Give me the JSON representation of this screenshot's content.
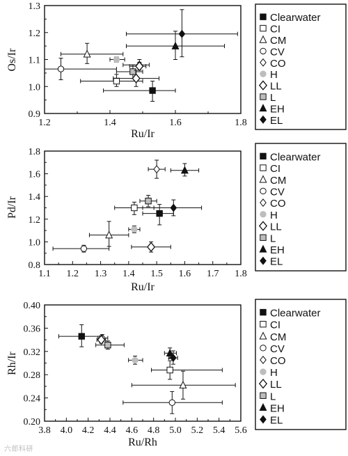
{
  "watermark": "六郎科研",
  "legend_labels": [
    "Clearwater",
    "CI",
    "CM",
    "CV",
    "CO",
    "H",
    "LL",
    "L",
    "EH",
    "EL"
  ],
  "legend_markers": [
    "filled-square",
    "open-square",
    "open-triangle",
    "open-circle",
    "open-diamond",
    "gray-circle",
    "open-diamond-large",
    "gray-square",
    "filled-triangle",
    "filled-diamond"
  ],
  "colors": {
    "ink": "#111111",
    "gray_fill": "#bdbdbd",
    "background": "#ffffff"
  },
  "chart_data": [
    {
      "type": "scatter",
      "xlabel": "Ru/Ir",
      "ylabel": "Os/Ir",
      "xlim": [
        1.2,
        1.8
      ],
      "ylim": [
        0.9,
        1.3
      ],
      "xticks": [
        "1.2",
        "1.4",
        "1.6",
        "1.8"
      ],
      "yticks": [
        "0.9",
        "1.0",
        "1.1",
        "1.2",
        "1.3"
      ],
      "grid": false,
      "legend_position": "right",
      "points": [
        {
          "name": "Clearwater",
          "x": 1.53,
          "y": 0.985,
          "xerr": [
            1.38,
            1.6
          ],
          "yerr": [
            0.945,
            1.02
          ]
        },
        {
          "name": "CI",
          "x": 1.42,
          "y": 1.02,
          "xerr": [
            1.31,
            1.5
          ],
          "yerr": [
            1.0,
            1.045
          ]
        },
        {
          "name": "CM",
          "x": 1.33,
          "y": 1.12,
          "xerr": [
            1.25,
            1.44
          ],
          "yerr": [
            1.085,
            1.16
          ]
        },
        {
          "name": "CV",
          "x": 1.25,
          "y": 1.065,
          "xerr": [
            1.2,
            1.42
          ],
          "yerr": [
            1.025,
            1.105
          ]
        },
        {
          "name": "CO",
          "x": 1.49,
          "y": 1.08,
          "xerr": [
            1.44,
            1.52
          ],
          "yerr": [
            1.06,
            1.1
          ]
        },
        {
          "name": "H",
          "x": 1.42,
          "y": 1.1,
          "xerr": [
            1.4,
            1.445
          ],
          "yerr": [
            1.09,
            1.11
          ]
        },
        {
          "name": "LL",
          "x": 1.49,
          "y": 1.075,
          "xerr": [
            1.46,
            1.51
          ],
          "yerr": [
            1.06,
            1.09
          ]
        },
        {
          "name": "L",
          "x": 1.47,
          "y": 1.055,
          "xerr": [
            1.42,
            1.5
          ],
          "yerr": [
            1.03,
            1.08
          ]
        },
        {
          "name": "EH",
          "x": 1.6,
          "y": 1.15,
          "xerr": [
            1.45,
            1.75
          ],
          "yerr": [
            1.1,
            1.205
          ]
        },
        {
          "name": "EL",
          "x": 1.62,
          "y": 1.195,
          "xerr": [
            1.45,
            1.79
          ],
          "yerr": [
            1.11,
            1.285
          ]
        },
        {
          "name": "LL",
          "x": 1.48,
          "y": 1.03,
          "xerr": [
            1.41,
            1.55
          ],
          "yerr": [
            1.0,
            1.06
          ]
        }
      ]
    },
    {
      "type": "scatter",
      "xlabel": "Ru/Ir",
      "ylabel": "Pd/Ir",
      "xlim": [
        1.1,
        1.8
      ],
      "ylim": [
        0.8,
        1.8
      ],
      "xticks": [
        "1.1",
        "1.2",
        "1.3",
        "1.4",
        "1.5",
        "1.6",
        "1.7",
        "1.8"
      ],
      "yticks": [
        "0.8",
        "1.0",
        "1.2",
        "1.4",
        "1.6",
        "1.8"
      ],
      "grid": false,
      "legend_position": "right",
      "points": [
        {
          "name": "Clearwater",
          "x": 1.51,
          "y": 1.25,
          "xerr": [
            1.45,
            1.56
          ],
          "yerr": [
            1.15,
            1.33
          ]
        },
        {
          "name": "CI",
          "x": 1.42,
          "y": 1.3,
          "xerr": [
            1.35,
            1.49
          ],
          "yerr": [
            1.24,
            1.35
          ]
        },
        {
          "name": "CM",
          "x": 1.33,
          "y": 1.06,
          "xerr": [
            1.26,
            1.4
          ],
          "yerr": [
            0.96,
            1.18
          ]
        },
        {
          "name": "CV",
          "x": 1.24,
          "y": 0.94,
          "xerr": [
            1.13,
            1.33
          ],
          "yerr": [
            0.91,
            0.97
          ]
        },
        {
          "name": "CO",
          "x": 1.5,
          "y": 1.64,
          "xerr": [
            1.47,
            1.53
          ],
          "yerr": [
            1.56,
            1.72
          ]
        },
        {
          "name": "H",
          "x": 1.42,
          "y": 1.11,
          "xerr": [
            1.4,
            1.44
          ],
          "yerr": [
            1.08,
            1.14
          ]
        },
        {
          "name": "LL",
          "x": 1.48,
          "y": 0.955,
          "xerr": [
            1.41,
            1.55
          ],
          "yerr": [
            0.91,
            1.0
          ]
        },
        {
          "name": "L",
          "x": 1.47,
          "y": 1.36,
          "xerr": [
            1.44,
            1.5
          ],
          "yerr": [
            1.31,
            1.41
          ]
        },
        {
          "name": "EH",
          "x": 1.6,
          "y": 1.63,
          "xerr": [
            1.55,
            1.65
          ],
          "yerr": [
            1.58,
            1.69
          ]
        },
        {
          "name": "EL",
          "x": 1.56,
          "y": 1.3,
          "xerr": [
            1.45,
            1.66
          ],
          "yerr": [
            1.23,
            1.37
          ]
        }
      ]
    },
    {
      "type": "scatter",
      "xlabel": "Ru/Rh",
      "ylabel": "Rh/Ir",
      "xlim": [
        3.8,
        5.6
      ],
      "ylim": [
        0.2,
        0.4
      ],
      "xticks": [
        "3.8",
        "4.0",
        "4.2",
        "4.4",
        "4.6",
        "4.8",
        "5.0",
        "5.2",
        "5.4",
        "5.6"
      ],
      "yticks": [
        "0.20",
        "0.24",
        "0.28",
        "0.32",
        "0.36",
        "0.40"
      ],
      "grid": false,
      "legend_position": "right",
      "points": [
        {
          "name": "Clearwater",
          "x": 4.14,
          "y": 0.346,
          "xerr": [
            3.93,
            4.32
          ],
          "yerr": [
            0.328,
            0.366
          ]
        },
        {
          "name": "CI",
          "x": 4.95,
          "y": 0.288,
          "xerr": [
            4.78,
            5.43
          ],
          "yerr": [
            0.272,
            0.304
          ]
        },
        {
          "name": "CM",
          "x": 5.07,
          "y": 0.262,
          "xerr": [
            4.6,
            5.55
          ],
          "yerr": [
            0.238,
            0.286
          ]
        },
        {
          "name": "CV",
          "x": 4.97,
          "y": 0.232,
          "xerr": [
            4.52,
            5.43
          ],
          "yerr": [
            0.213,
            0.251
          ]
        },
        {
          "name": "CO",
          "x": 4.33,
          "y": 0.343,
          "xerr": [
            4.29,
            4.38
          ],
          "yerr": [
            0.337,
            0.349
          ]
        },
        {
          "name": "H",
          "x": 4.63,
          "y": 0.305,
          "xerr": [
            4.57,
            4.7
          ],
          "yerr": [
            0.298,
            0.312
          ]
        },
        {
          "name": "LL",
          "x": 4.32,
          "y": 0.34,
          "xerr": [
            4.28,
            4.36
          ],
          "yerr": [
            0.334,
            0.347
          ]
        },
        {
          "name": "L",
          "x": 4.38,
          "y": 0.331,
          "xerr": [
            4.27,
            4.53
          ],
          "yerr": [
            0.324,
            0.338
          ]
        },
        {
          "name": "EH",
          "x": 4.95,
          "y": 0.317,
          "xerr": [
            4.9,
            5.01
          ],
          "yerr": [
            0.308,
            0.326
          ]
        },
        {
          "name": "EL",
          "x": 4.98,
          "y": 0.309,
          "xerr": [
            4.94,
            5.02
          ],
          "yerr": [
            0.298,
            0.321
          ]
        }
      ]
    }
  ]
}
